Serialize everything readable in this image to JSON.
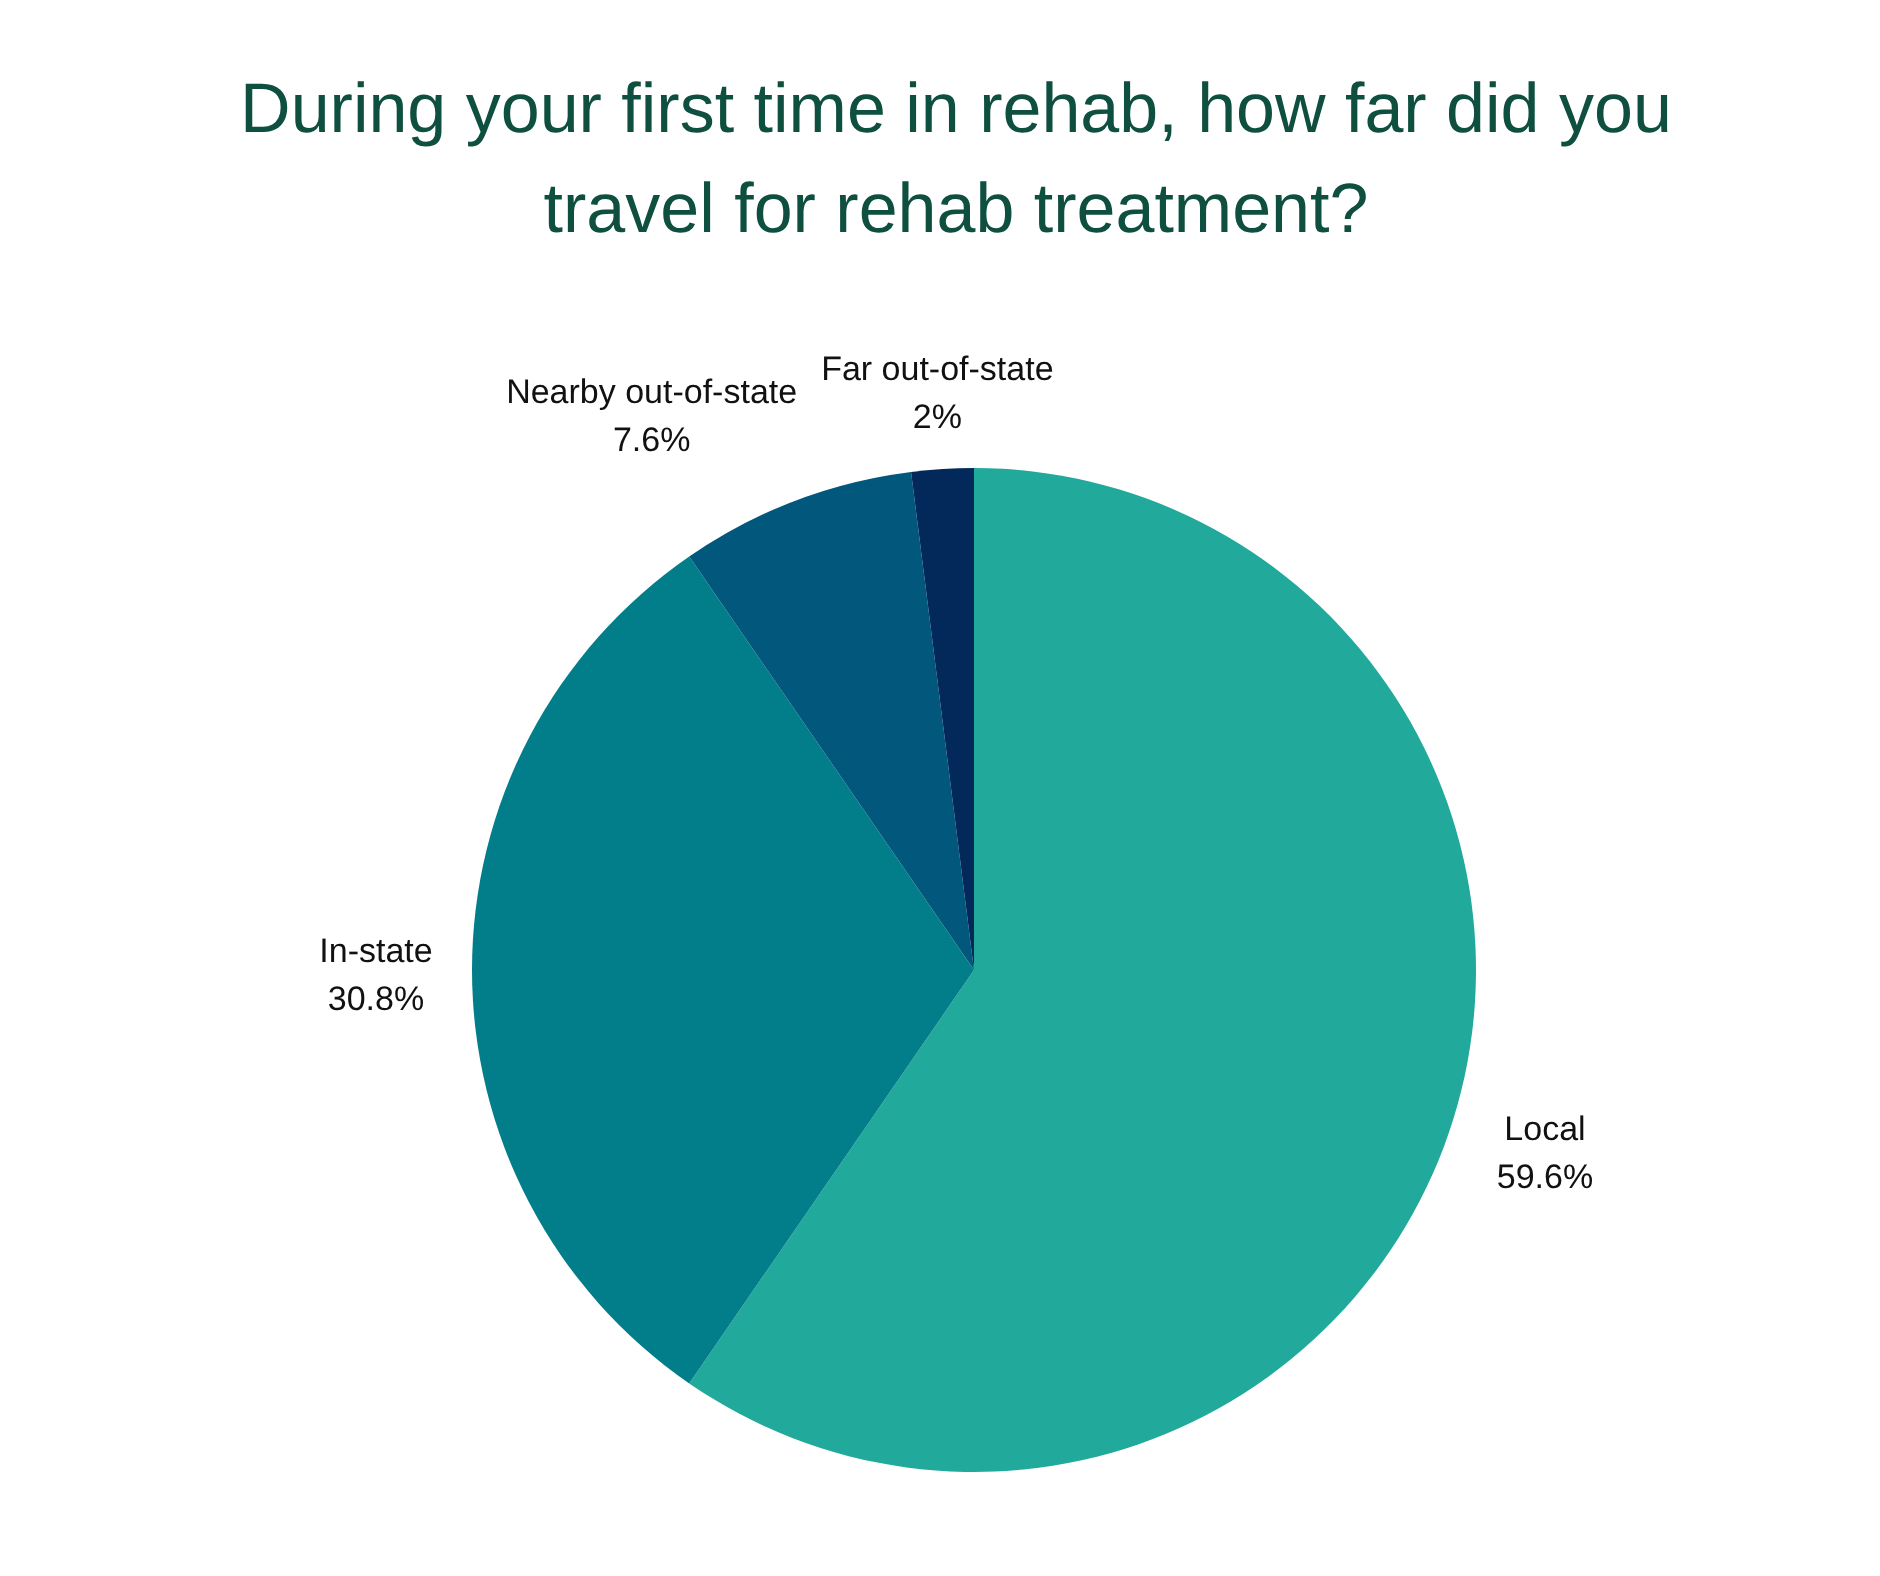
{
  "chart_data": {
    "type": "pie",
    "title": "During your first time in rehab, how far did you travel for rehab treatment?",
    "categories": [
      "Local",
      "In-state",
      "Nearby out-of-state",
      "Far out-of-state"
    ],
    "values": [
      59.6,
      30.8,
      7.6,
      2
    ],
    "colors": [
      "#21a99b",
      "#027e8a",
      "#02577d",
      "#02295a"
    ],
    "value_labels": [
      "59.6%",
      "30.8%",
      "7.6%",
      "2%"
    ]
  }
}
